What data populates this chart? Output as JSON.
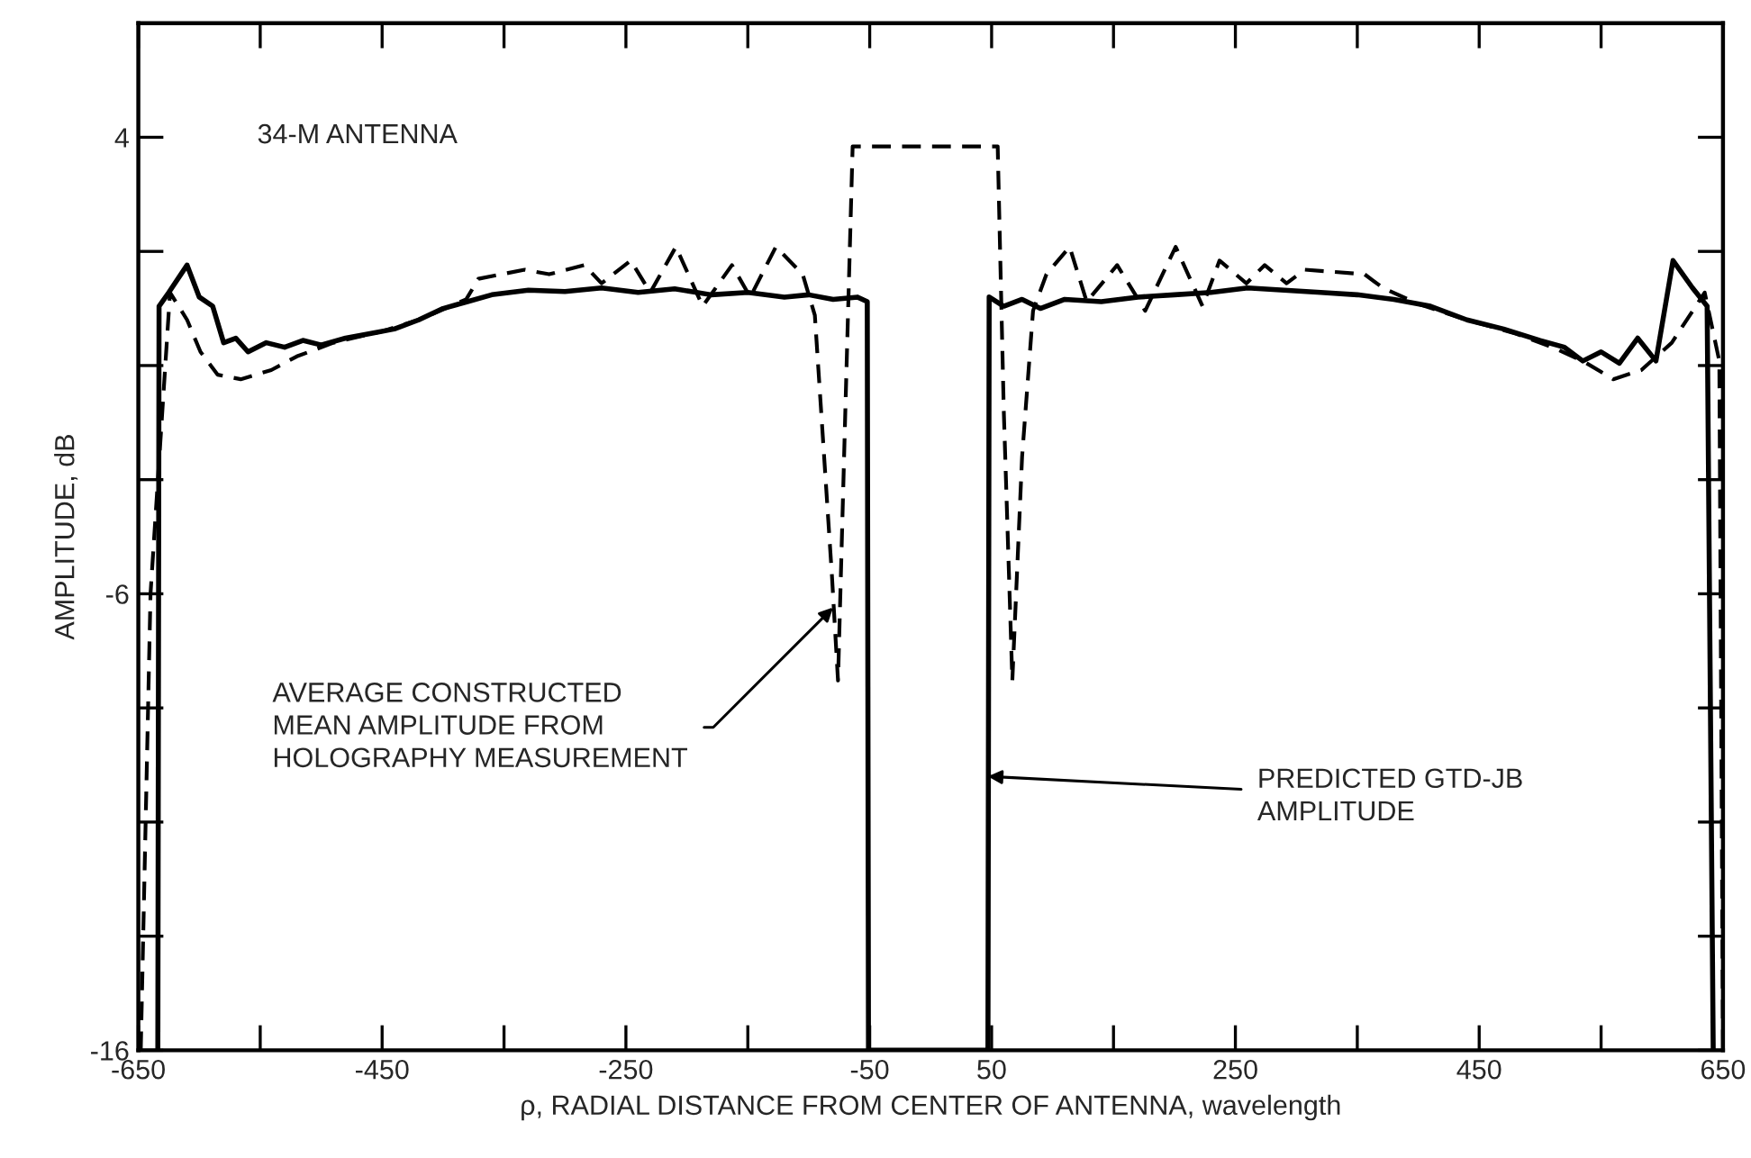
{
  "chart_data": {
    "type": "line",
    "xlabel": "ρ, RADIAL DISTANCE FROM CENTER OF ANTENNA, wavelength",
    "ylabel": "AMPLITUDE, dB",
    "xlim": [
      -650,
      650
    ],
    "xticks": [
      -650,
      {
        "value": -550,
        "label": null
      },
      -450,
      {
        "value": -350,
        "label": null
      },
      -250,
      {
        "value": -150,
        "label": null
      },
      -50,
      50,
      {
        "value": 150,
        "label": null
      },
      250,
      {
        "value": 350,
        "label": null
      },
      450,
      {
        "value": 550,
        "label": null
      },
      650
    ],
    "ylim": [
      -16,
      6.5
    ],
    "yticks": [
      -16,
      {
        "value": -13.5,
        "label": null
      },
      {
        "value": -11,
        "label": null
      },
      {
        "value": -8.5,
        "label": null
      },
      -6,
      {
        "value": -3.5,
        "label": null
      },
      {
        "value": -1,
        "label": null
      },
      {
        "value": 1.5,
        "label": null
      },
      4
    ],
    "grid": false,
    "legend": false,
    "annotations": [
      "34-M ANTENNA",
      {
        "text": "AVERAGE CONSTRUCTED\nMEAN AMPLITUDE FROM\nHOLOGRAPHY MEASUREMENT",
        "x": -80,
        "y": -6.3
      },
      {
        "text": "PREDICTED GTD-JB\nAMPLITUDE",
        "x": 47,
        "y": -10
      }
    ],
    "series": [
      {
        "color": "#000000",
        "line_style": "solid",
        "x": [
          -634,
          -633,
          -625,
          -610,
          -600,
          -589,
          -580,
          -570,
          -560,
          -545,
          -530,
          -515,
          -500,
          -480,
          -460,
          -440,
          -420,
          -400,
          -380,
          -360,
          -330,
          -300,
          -270,
          -240,
          -210,
          -180,
          -150,
          -120,
          -100,
          -80,
          -60,
          -52,
          -51,
          47,
          48,
          60,
          75,
          90,
          110,
          140,
          170,
          200,
          230,
          260,
          290,
          320,
          350,
          380,
          410,
          440,
          470,
          500,
          520,
          535,
          550,
          565,
          580,
          595,
          609,
          625,
          637,
          642
        ],
        "values": [
          -16,
          0.3,
          0.6,
          1.2,
          0.5,
          0.3,
          -0.5,
          -0.4,
          -0.7,
          -0.5,
          -0.6,
          -0.45,
          -0.55,
          -0.4,
          -0.3,
          -0.2,
          0.0,
          0.25,
          0.4,
          0.55,
          0.65,
          0.62,
          0.7,
          0.6,
          0.68,
          0.55,
          0.6,
          0.5,
          0.55,
          0.45,
          0.5,
          0.4,
          -16,
          -16,
          0.5,
          0.3,
          0.45,
          0.25,
          0.45,
          0.4,
          0.5,
          0.55,
          0.6,
          0.7,
          0.65,
          0.6,
          0.55,
          0.45,
          0.3,
          0.0,
          -0.2,
          -0.45,
          -0.6,
          -0.9,
          -0.7,
          -0.95,
          -0.4,
          -0.9,
          1.3,
          0.7,
          0.3,
          -16
        ]
      },
      {
        "color": "#000000",
        "line_style": "dashed",
        "x": [
          -648,
          -640,
          -624,
          -610,
          -599,
          -585,
          -566,
          -541,
          -520,
          -490,
          -450,
          -420,
          -381,
          -371,
          -333,
          -313,
          -284,
          -270,
          -246,
          -230,
          -209,
          -187,
          -163,
          -148,
          -127,
          -105,
          -95,
          -81,
          -76,
          -70,
          -64,
          55,
          60,
          67,
          75,
          84,
          95,
          114,
          128,
          153,
          176,
          201,
          223,
          237,
          259,
          274,
          292,
          307,
          356,
          371,
          400,
          440,
          480,
          510,
          535,
          560,
          583,
          608,
          635,
          647,
          650
        ],
        "values": [
          -16,
          -6,
          0.6,
          0.0,
          -0.7,
          -1.2,
          -1.3,
          -1.1,
          -0.8,
          -0.5,
          -0.25,
          0.0,
          0.45,
          0.9,
          1.1,
          1.0,
          1.2,
          0.8,
          1.3,
          0.6,
          1.6,
          0.3,
          1.2,
          0.5,
          1.6,
          1.0,
          0.1,
          -5.6,
          -7.9,
          -2,
          3.8,
          3.8,
          -2,
          -7.9,
          -3,
          0.2,
          1.0,
          1.6,
          0.4,
          1.2,
          0.2,
          1.6,
          0.3,
          1.3,
          0.8,
          1.2,
          0.8,
          1.1,
          1.0,
          0.7,
          0.35,
          0.0,
          -0.3,
          -0.6,
          -0.9,
          -1.3,
          -1.1,
          -0.5,
          0.6,
          -0.9,
          -16
        ]
      }
    ]
  }
}
